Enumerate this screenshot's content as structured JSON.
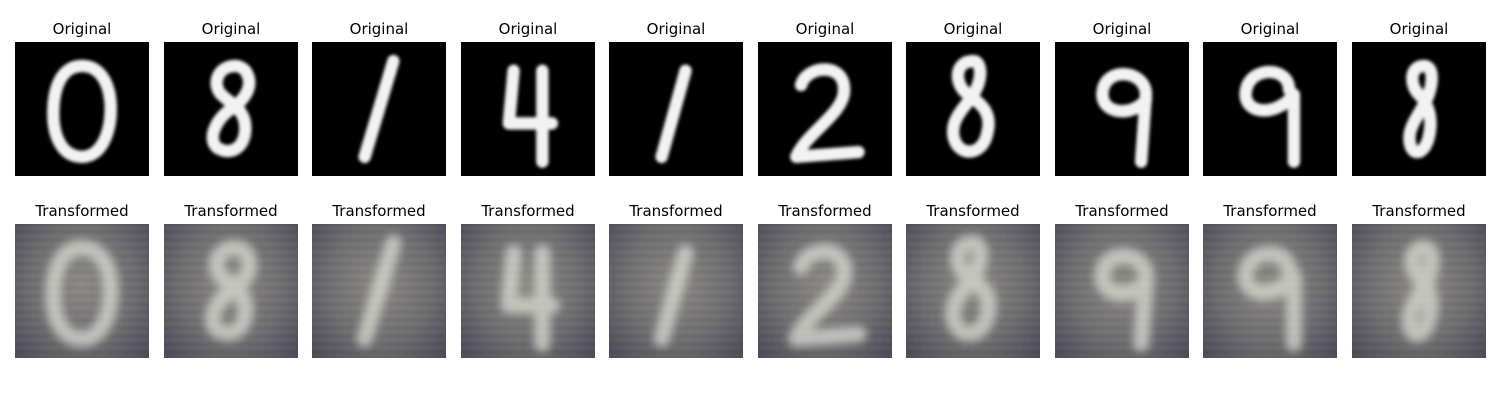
{
  "figure": {
    "row_titles": {
      "original": "Original",
      "transformed": "Transformed"
    },
    "digits": [
      "0",
      "8",
      "1",
      "4",
      "1",
      "2",
      "8",
      "9",
      "9",
      "8"
    ],
    "colors": {
      "original_bg": "#000000",
      "original_stroke": "#f2f2f2",
      "transformed_stroke": "#d9dbd2"
    }
  }
}
